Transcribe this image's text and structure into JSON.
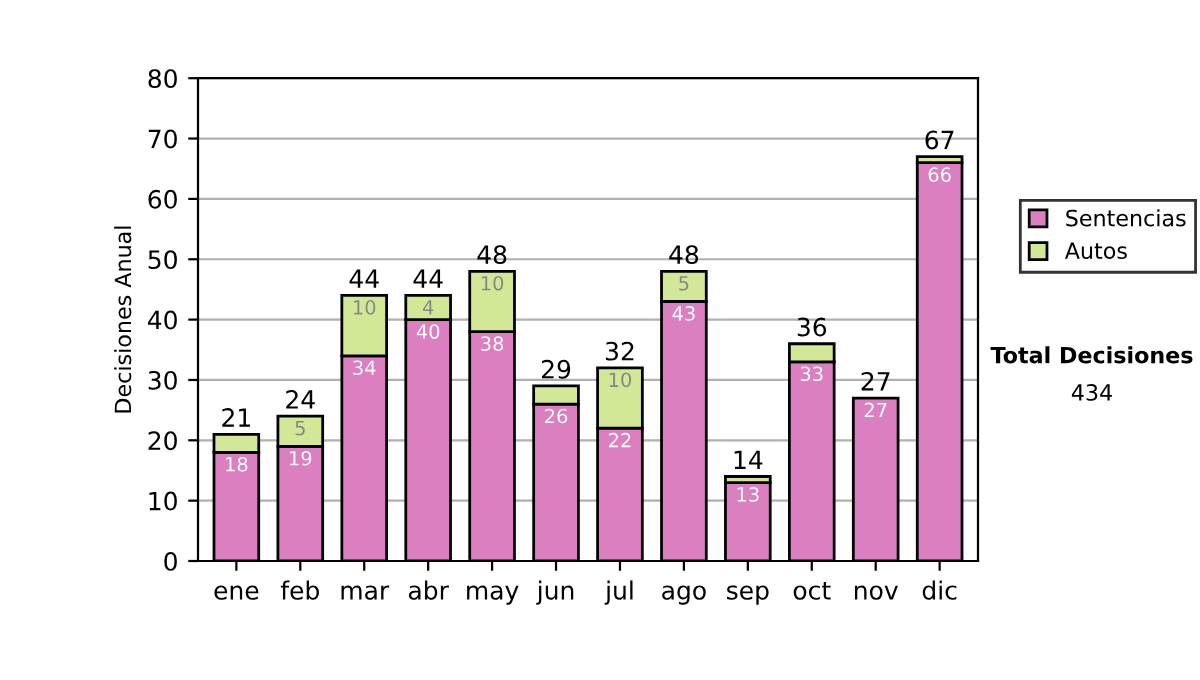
{
  "chart_data": {
    "type": "bar",
    "stacked": true,
    "ylabel": "Decisiones Anual",
    "categories": [
      "ene",
      "feb",
      "mar",
      "abr",
      "may",
      "jun",
      "jul",
      "ago",
      "sep",
      "oct",
      "nov",
      "dic"
    ],
    "series": [
      {
        "name": "Sentencias",
        "color": "#dc7fc0",
        "values": [
          18,
          19,
          34,
          40,
          38,
          26,
          22,
          43,
          13,
          33,
          27,
          66
        ],
        "value_labels": [
          "18",
          "19",
          "34",
          "40",
          "38",
          "26",
          "22",
          "43",
          "13",
          "33",
          "27",
          "66"
        ]
      },
      {
        "name": "Autos",
        "color": "#d2e896",
        "values": [
          3,
          5,
          10,
          4,
          10,
          3,
          10,
          5,
          1,
          3,
          null,
          1
        ],
        "value_labels": [
          null,
          "5",
          "10",
          "4",
          "10",
          null,
          "10",
          "5",
          null,
          null,
          null,
          null
        ]
      }
    ],
    "totals": [
      "21",
      "24",
      "44",
      "44",
      "48",
      "29",
      "32",
      "48",
      "14",
      "36",
      "27",
      "67"
    ],
    "ylim": [
      0,
      80
    ],
    "yticks": [
      0,
      10,
      20,
      30,
      40,
      50,
      60,
      70,
      80
    ],
    "grid": "y",
    "legend": "right",
    "annotations": [
      "Total Decisiones",
      "434"
    ]
  }
}
